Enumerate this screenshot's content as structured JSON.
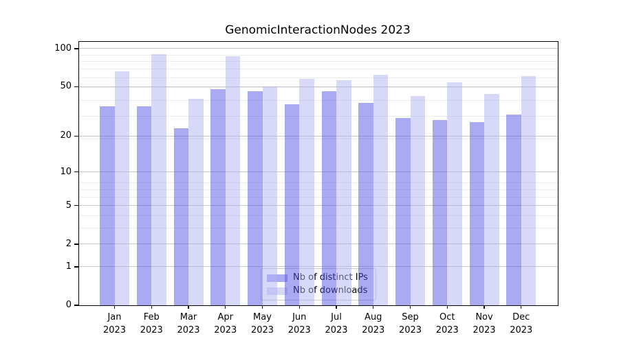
{
  "chart_data": {
    "type": "bar",
    "title": "GenomicInteractionNodes 2023",
    "categories": [
      "Jan",
      "Feb",
      "Mar",
      "Apr",
      "May",
      "Jun",
      "Jul",
      "Aug",
      "Sep",
      "Oct",
      "Nov",
      "Dec"
    ],
    "x_tick_year": "2023",
    "series": [
      {
        "name": "Nb of distinct IPs",
        "color": "rgba(85,85,230,0.5)",
        "values": [
          35,
          35,
          23,
          48,
          46,
          36,
          46,
          37,
          28,
          27,
          26,
          30
        ]
      },
      {
        "name": "Nb of downloads",
        "color": "rgba(178,178,241,0.5)",
        "values": [
          66,
          91,
          40,
          87,
          50,
          58,
          56,
          62,
          42,
          54,
          44,
          61
        ]
      }
    ],
    "y_scale": "log10(1+v)",
    "y_ticks": [
      0,
      1,
      2,
      5,
      10,
      20,
      50,
      100
    ],
    "y_minor_gridlines": [
      2,
      3,
      4,
      5,
      6,
      7,
      8,
      19,
      29,
      39,
      49,
      59,
      69,
      79,
      89
    ],
    "ylim": [
      0,
      113
    ],
    "grid": true,
    "legend_position": "lower center",
    "colors": {
      "bar_distinct_ips": "rgba(85,85,230,0.5)",
      "bar_downloads": "rgba(178,178,241,0.5)",
      "gridline_major": "#c6c6c6",
      "gridline_minor": "#ececec",
      "spine": "#000000",
      "legend_border": "#cccccc"
    }
  }
}
